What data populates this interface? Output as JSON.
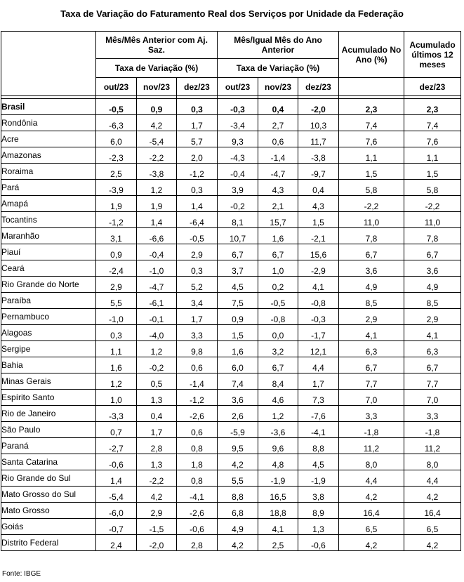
{
  "title": "Taxa de Variação do Faturamento Real dos Serviços por Unidade da Federação",
  "header": {
    "group1": "Mês/Mês Anterior com Aj. Saz.",
    "group2": "Mês/Igual Mês do Ano Anterior",
    "sub1": "Taxa de Variação (%)",
    "sub2": "Taxa de Variação (%)",
    "acum_ano": "Acumulado No Ano (%)",
    "acum_12": "Acumulado últimos 12 meses",
    "months": [
      "out/23",
      "nov/23",
      "dez/23",
      "out/23",
      "nov/23",
      "dez/23"
    ],
    "acum_12_month": "dez/23"
  },
  "rows": [
    {
      "name": "Brasil",
      "values": [
        "-0,5",
        "0,9",
        "0,3",
        "-0,3",
        "0,4",
        "-2,0",
        "2,3",
        "2,3"
      ]
    },
    {
      "name": "Rondônia",
      "values": [
        "-6,3",
        "4,2",
        "1,7",
        "-3,4",
        "2,7",
        "10,3",
        "7,4",
        "7,4"
      ]
    },
    {
      "name": "Acre",
      "values": [
        "6,0",
        "-5,4",
        "5,7",
        "9,3",
        "0,6",
        "11,7",
        "7,6",
        "7,6"
      ]
    },
    {
      "name": "Amazonas",
      "values": [
        "-2,3",
        "-2,2",
        "2,0",
        "-4,3",
        "-1,4",
        "-3,8",
        "1,1",
        "1,1"
      ]
    },
    {
      "name": "Roraima",
      "values": [
        "2,5",
        "-3,8",
        "-1,2",
        "-0,4",
        "-4,7",
        "-9,7",
        "1,5",
        "1,5"
      ]
    },
    {
      "name": "Pará",
      "values": [
        "-3,9",
        "1,2",
        "0,3",
        "3,9",
        "4,3",
        "0,4",
        "5,8",
        "5,8"
      ]
    },
    {
      "name": "Amapá",
      "values": [
        "1,9",
        "1,9",
        "1,4",
        "-0,2",
        "2,1",
        "4,3",
        "-2,2",
        "-2,2"
      ]
    },
    {
      "name": "Tocantins",
      "values": [
        "-1,2",
        "1,4",
        "-6,4",
        "8,1",
        "15,7",
        "1,5",
        "11,0",
        "11,0"
      ]
    },
    {
      "name": "Maranhão",
      "values": [
        "3,1",
        "-6,6",
        "-0,5",
        "10,7",
        "1,6",
        "-2,1",
        "7,8",
        "7,8"
      ]
    },
    {
      "name": "Piauí",
      "values": [
        "0,9",
        "-0,4",
        "2,9",
        "6,7",
        "6,7",
        "15,6",
        "6,7",
        "6,7"
      ]
    },
    {
      "name": "Ceará",
      "values": [
        "-2,4",
        "-1,0",
        "0,3",
        "3,7",
        "1,0",
        "-2,9",
        "3,6",
        "3,6"
      ]
    },
    {
      "name": "Rio Grande do Norte",
      "values": [
        "2,9",
        "-4,7",
        "5,2",
        "4,5",
        "0,2",
        "4,1",
        "4,9",
        "4,9"
      ]
    },
    {
      "name": "Paraíba",
      "values": [
        "5,5",
        "-6,1",
        "3,4",
        "7,5",
        "-0,5",
        "-0,8",
        "8,5",
        "8,5"
      ]
    },
    {
      "name": "Pernambuco",
      "values": [
        "-1,0",
        "-0,1",
        "1,7",
        "0,9",
        "-0,8",
        "-0,3",
        "2,9",
        "2,9"
      ]
    },
    {
      "name": "Alagoas",
      "values": [
        "0,3",
        "-4,0",
        "3,3",
        "1,5",
        "0,0",
        "-1,7",
        "4,1",
        "4,1"
      ]
    },
    {
      "name": "Sergipe",
      "values": [
        "1,1",
        "1,2",
        "9,8",
        "1,6",
        "3,2",
        "12,1",
        "6,3",
        "6,3"
      ]
    },
    {
      "name": "Bahia",
      "values": [
        "1,6",
        "-0,2",
        "0,6",
        "6,0",
        "6,7",
        "4,4",
        "6,7",
        "6,7"
      ]
    },
    {
      "name": "Minas Gerais",
      "values": [
        "1,2",
        "0,5",
        "-1,4",
        "7,4",
        "8,4",
        "1,7",
        "7,7",
        "7,7"
      ]
    },
    {
      "name": "Espírito Santo",
      "values": [
        "1,0",
        "1,3",
        "-1,2",
        "3,6",
        "4,6",
        "7,3",
        "7,0",
        "7,0"
      ]
    },
    {
      "name": "Rio de Janeiro",
      "values": [
        "-3,3",
        "0,4",
        "-2,6",
        "2,6",
        "1,2",
        "-7,6",
        "3,3",
        "3,3"
      ]
    },
    {
      "name": "São Paulo",
      "values": [
        "0,7",
        "1,7",
        "0,6",
        "-5,9",
        "-3,6",
        "-4,1",
        "-1,8",
        "-1,8"
      ]
    },
    {
      "name": "Paraná",
      "values": [
        "-2,7",
        "2,8",
        "0,8",
        "9,5",
        "9,6",
        "8,8",
        "11,2",
        "11,2"
      ]
    },
    {
      "name": "Santa Catarina",
      "values": [
        "-0,6",
        "1,3",
        "1,8",
        "4,2",
        "4,8",
        "4,5",
        "8,0",
        "8,0"
      ]
    },
    {
      "name": "Rio Grande do Sul",
      "values": [
        "1,4",
        "-2,2",
        "0,8",
        "5,5",
        "-1,9",
        "-1,9",
        "4,4",
        "4,4"
      ]
    },
    {
      "name": "Mato Grosso do Sul",
      "values": [
        "-5,4",
        "4,2",
        "-4,1",
        "8,8",
        "16,5",
        "3,8",
        "4,2",
        "4,2"
      ]
    },
    {
      "name": "Mato Grosso",
      "values": [
        "-6,0",
        "2,9",
        "-2,6",
        "6,8",
        "18,8",
        "8,9",
        "16,4",
        "16,4"
      ]
    },
    {
      "name": "Goiás",
      "values": [
        "-0,7",
        "-1,5",
        "-0,6",
        "4,9",
        "4,1",
        "1,3",
        "6,5",
        "6,5"
      ]
    },
    {
      "name": "Distrito Federal",
      "values": [
        "2,4",
        "-2,0",
        "2,8",
        "4,2",
        "2,5",
        "-0,6",
        "4,2",
        "4,2"
      ]
    }
  ],
  "source": "Fonte: IBGE"
}
